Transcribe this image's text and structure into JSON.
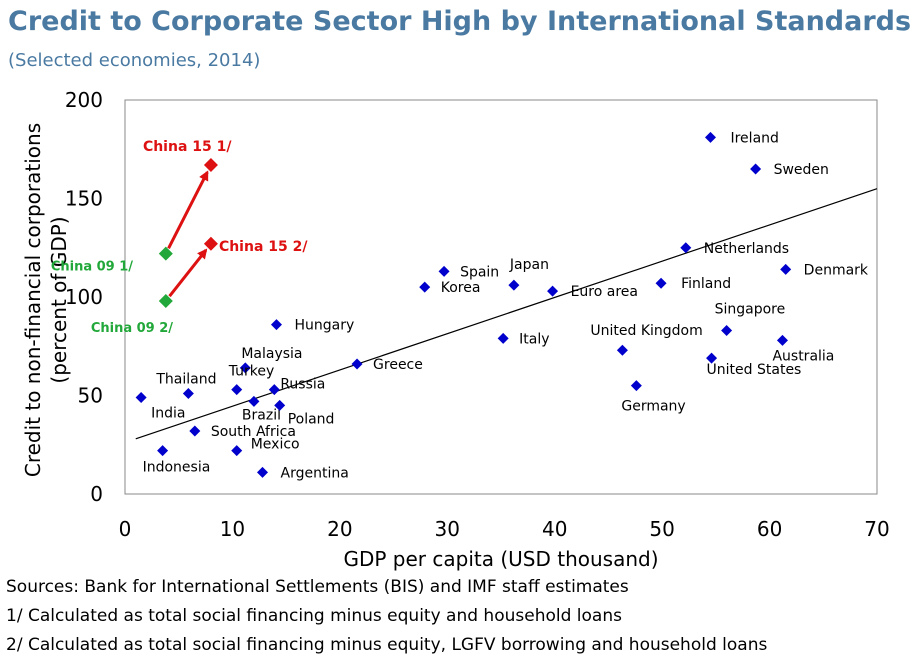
{
  "title": "Credit to Corporate Sector High by International Standards",
  "subtitle": "(Selected economies, 2014)",
  "notes": [
    "Sources: Bank for International Settlements (BIS) and IMF staff estimates",
    "1/ Calculated as total social financing minus equity and household loans",
    "2/ Calculated as total social financing minus equity, LGFV borrowing and household loans"
  ],
  "colors": {
    "series": "#0000cc",
    "china09": "#22a83a",
    "china15": "#dd1111",
    "title": "#4a7aa2",
    "trend": "#000000"
  },
  "chart_data": {
    "type": "scatter",
    "xlabel": "GDP per capita (USD thousand)",
    "ylabel": "Credit to non-financial corporations (percent of GDP)",
    "ylabel_lines": [
      "Credit to non-financial corporations",
      "(percent of GDP)"
    ],
    "xlim": [
      0,
      70
    ],
    "ylim": [
      0,
      200
    ],
    "xticks": [
      0,
      10,
      20,
      30,
      40,
      50,
      60,
      70
    ],
    "yticks": [
      0,
      50,
      100,
      150,
      200
    ],
    "grid": false,
    "series": [
      {
        "name": "",
        "color": "#0000cc",
        "marker": "diamond",
        "points": [
          {
            "label": "Ireland",
            "x": 54.5,
            "y": 181
          },
          {
            "label": "Sweden",
            "x": 58.7,
            "y": 165
          },
          {
            "label": "Netherlands",
            "x": 52.2,
            "y": 125
          },
          {
            "label": "Denmark",
            "x": 61.5,
            "y": 114
          },
          {
            "label": "Finland",
            "x": 49.9,
            "y": 107
          },
          {
            "label": "Singapore",
            "x": 56.0,
            "y": 83
          },
          {
            "label": "United Kingdom",
            "x": 46.3,
            "y": 73
          },
          {
            "label": "Australia",
            "x": 61.2,
            "y": 78
          },
          {
            "label": "United States",
            "x": 54.6,
            "y": 69
          },
          {
            "label": "Germany",
            "x": 47.6,
            "y": 55
          },
          {
            "label": "Spain",
            "x": 29.7,
            "y": 113
          },
          {
            "label": "Japan",
            "x": 36.2,
            "y": 106
          },
          {
            "label": "Korea",
            "x": 27.9,
            "y": 105
          },
          {
            "label": "Euro area",
            "x": 39.8,
            "y": 103
          },
          {
            "label": "Italy",
            "x": 35.2,
            "y": 79
          },
          {
            "label": "Greece",
            "x": 21.6,
            "y": 66
          },
          {
            "label": "Hungary",
            "x": 14.1,
            "y": 86
          },
          {
            "label": "Malaysia",
            "x": 11.2,
            "y": 64
          },
          {
            "label": "Turkey",
            "x": 10.4,
            "y": 53
          },
          {
            "label": "Russia",
            "x": 13.9,
            "y": 53
          },
          {
            "label": "Brazil",
            "x": 12.0,
            "y": 47
          },
          {
            "label": "Poland",
            "x": 14.4,
            "y": 45
          },
          {
            "label": "Thailand",
            "x": 5.9,
            "y": 51
          },
          {
            "label": "India",
            "x": 1.5,
            "y": 49
          },
          {
            "label": "South Africa",
            "x": 6.5,
            "y": 32
          },
          {
            "label": "Mexico",
            "x": 10.4,
            "y": 22
          },
          {
            "label": "Indonesia",
            "x": 3.5,
            "y": 22
          },
          {
            "label": "Argentina",
            "x": 12.8,
            "y": 11
          }
        ]
      }
    ],
    "china": [
      {
        "from": {
          "label": "China 09 1/",
          "x": 3.8,
          "y": 122
        },
        "to": {
          "label": "China 15 1/",
          "x": 8.0,
          "y": 167
        }
      },
      {
        "from": {
          "label": "China 09 2/",
          "x": 3.8,
          "y": 98
        },
        "to": {
          "label": "China 15 2/",
          "x": 8.0,
          "y": 127
        }
      }
    ],
    "trendline": {
      "x": [
        1,
        70
      ],
      "y": [
        28,
        155
      ]
    }
  }
}
